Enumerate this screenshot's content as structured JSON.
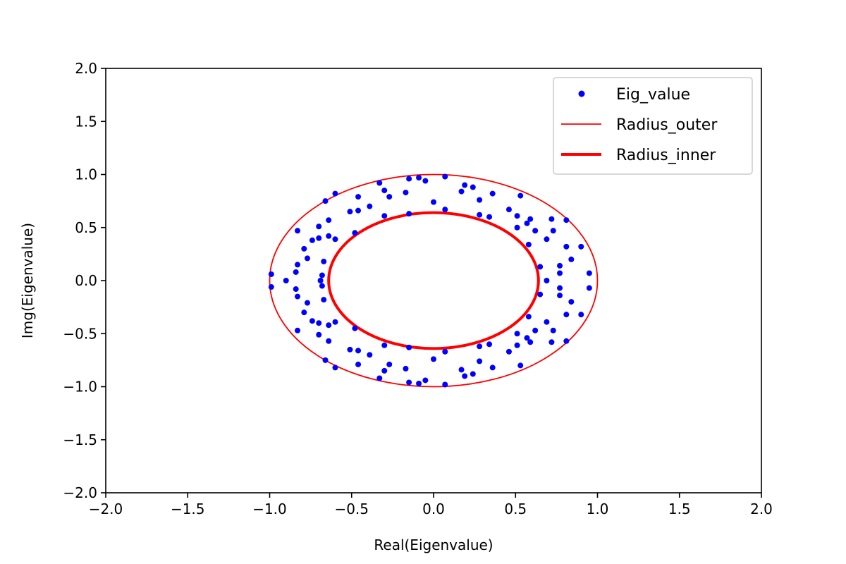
{
  "chart_data": {
    "type": "scatter",
    "title": "",
    "xlabel": "Real(Eigenvalue)",
    "ylabel": "Img(Eigenvalue)",
    "xlim": [
      -2.0,
      2.0
    ],
    "ylim": [
      -2.0,
      2.0
    ],
    "xticks": [
      "−2.0",
      "−1.5",
      "−1.0",
      "−0.5",
      "0.0",
      "0.5",
      "1.0",
      "1.5",
      "2.0"
    ],
    "yticks": [
      "2.0",
      "1.5",
      "1.0",
      "0.5",
      "0.0",
      "−0.5",
      "−1.0",
      "−1.5",
      "−2.0"
    ],
    "grid": false,
    "legend_position": "top-right",
    "series": [
      {
        "name": "Eig_value",
        "kind": "points",
        "color": "#0000ff",
        "points": [
          [
            -0.99,
            0.06
          ],
          [
            -0.99,
            -0.06
          ],
          [
            -0.9,
            0.0
          ],
          [
            -0.83,
            0.47
          ],
          [
            -0.83,
            0.15
          ],
          [
            -0.84,
            0.08
          ],
          [
            -0.83,
            -0.15
          ],
          [
            -0.84,
            -0.08
          ],
          [
            -0.83,
            -0.47
          ],
          [
            -0.79,
            0.3
          ],
          [
            -0.79,
            -0.3
          ],
          [
            -0.77,
            0.21
          ],
          [
            -0.77,
            -0.21
          ],
          [
            -0.74,
            0.38
          ],
          [
            -0.74,
            -0.38
          ],
          [
            -0.7,
            0.51
          ],
          [
            -0.7,
            0.4
          ],
          [
            -0.7,
            -0.4
          ],
          [
            -0.7,
            -0.51
          ],
          [
            -0.69,
            0.0
          ],
          [
            -0.68,
            0.05
          ],
          [
            -0.68,
            -0.05
          ],
          [
            -0.67,
            0.18
          ],
          [
            -0.67,
            -0.18
          ],
          [
            -0.66,
            0.75
          ],
          [
            -0.66,
            -0.75
          ],
          [
            -0.64,
            0.57
          ],
          [
            -0.64,
            0.42
          ],
          [
            -0.64,
            -0.42
          ],
          [
            -0.64,
            -0.57
          ],
          [
            -0.6,
            0.82
          ],
          [
            -0.6,
            0.39
          ],
          [
            -0.6,
            -0.39
          ],
          [
            -0.6,
            -0.82
          ],
          [
            -0.51,
            0.65
          ],
          [
            -0.51,
            -0.65
          ],
          [
            -0.48,
            0.45
          ],
          [
            -0.48,
            -0.45
          ],
          [
            -0.46,
            0.79
          ],
          [
            -0.46,
            0.66
          ],
          [
            -0.46,
            -0.66
          ],
          [
            -0.46,
            -0.79
          ],
          [
            -0.39,
            0.7
          ],
          [
            -0.39,
            -0.7
          ],
          [
            -0.33,
            0.92
          ],
          [
            -0.33,
            -0.92
          ],
          [
            -0.3,
            0.85
          ],
          [
            -0.3,
            0.61
          ],
          [
            -0.3,
            -0.61
          ],
          [
            -0.3,
            -0.85
          ],
          [
            -0.27,
            0.79
          ],
          [
            -0.27,
            -0.79
          ],
          [
            -0.17,
            0.83
          ],
          [
            -0.17,
            -0.83
          ],
          [
            -0.15,
            0.96
          ],
          [
            -0.15,
            0.63
          ],
          [
            -0.15,
            -0.63
          ],
          [
            -0.15,
            -0.96
          ],
          [
            -0.09,
            0.97
          ],
          [
            -0.09,
            -0.97
          ],
          [
            -0.05,
            0.94
          ],
          [
            -0.05,
            -0.94
          ],
          [
            0.0,
            0.74
          ],
          [
            0.0,
            -0.74
          ],
          [
            0.07,
            0.98
          ],
          [
            0.07,
            0.67
          ],
          [
            0.07,
            -0.67
          ],
          [
            0.07,
            -0.98
          ],
          [
            0.17,
            0.84
          ],
          [
            0.17,
            -0.84
          ],
          [
            0.19,
            0.9
          ],
          [
            0.19,
            -0.9
          ],
          [
            0.24,
            0.88
          ],
          [
            0.24,
            -0.88
          ],
          [
            0.28,
            0.76
          ],
          [
            0.28,
            0.62
          ],
          [
            0.28,
            -0.62
          ],
          [
            0.28,
            -0.76
          ],
          [
            0.34,
            0.6
          ],
          [
            0.34,
            -0.6
          ],
          [
            0.36,
            0.82
          ],
          [
            0.36,
            -0.82
          ],
          [
            0.46,
            0.67
          ],
          [
            0.46,
            -0.67
          ],
          [
            0.51,
            0.61
          ],
          [
            0.51,
            0.5
          ],
          [
            0.51,
            -0.5
          ],
          [
            0.51,
            -0.61
          ],
          [
            0.53,
            0.8
          ],
          [
            0.53,
            -0.8
          ],
          [
            0.57,
            0.54
          ],
          [
            0.57,
            -0.54
          ],
          [
            0.58,
            0.34
          ],
          [
            0.58,
            -0.34
          ],
          [
            0.59,
            0.58
          ],
          [
            0.59,
            -0.58
          ],
          [
            0.62,
            0.47
          ],
          [
            0.62,
            -0.47
          ],
          [
            0.65,
            0.13
          ],
          [
            0.65,
            -0.13
          ],
          [
            0.69,
            0.39
          ],
          [
            0.69,
            0.0
          ],
          [
            0.69,
            -0.39
          ],
          [
            0.72,
            0.58
          ],
          [
            0.72,
            -0.58
          ],
          [
            0.73,
            0.47
          ],
          [
            0.73,
            -0.47
          ],
          [
            0.77,
            0.14
          ],
          [
            0.77,
            0.07
          ],
          [
            0.77,
            -0.07
          ],
          [
            0.77,
            -0.14
          ],
          [
            0.81,
            0.57
          ],
          [
            0.81,
            0.32
          ],
          [
            0.81,
            -0.32
          ],
          [
            0.81,
            -0.57
          ],
          [
            0.84,
            0.2
          ],
          [
            0.84,
            -0.2
          ],
          [
            0.9,
            0.32
          ],
          [
            0.9,
            -0.32
          ],
          [
            0.95,
            0.07
          ],
          [
            0.95,
            -0.07
          ]
        ]
      },
      {
        "name": "Radius_outer",
        "kind": "circle",
        "radius": 1.0,
        "color": "#ff0000",
        "weight": "thin"
      },
      {
        "name": "Radius_inner",
        "kind": "circle",
        "radius": 0.64,
        "color": "#ff0000",
        "weight": "thick"
      }
    ]
  }
}
